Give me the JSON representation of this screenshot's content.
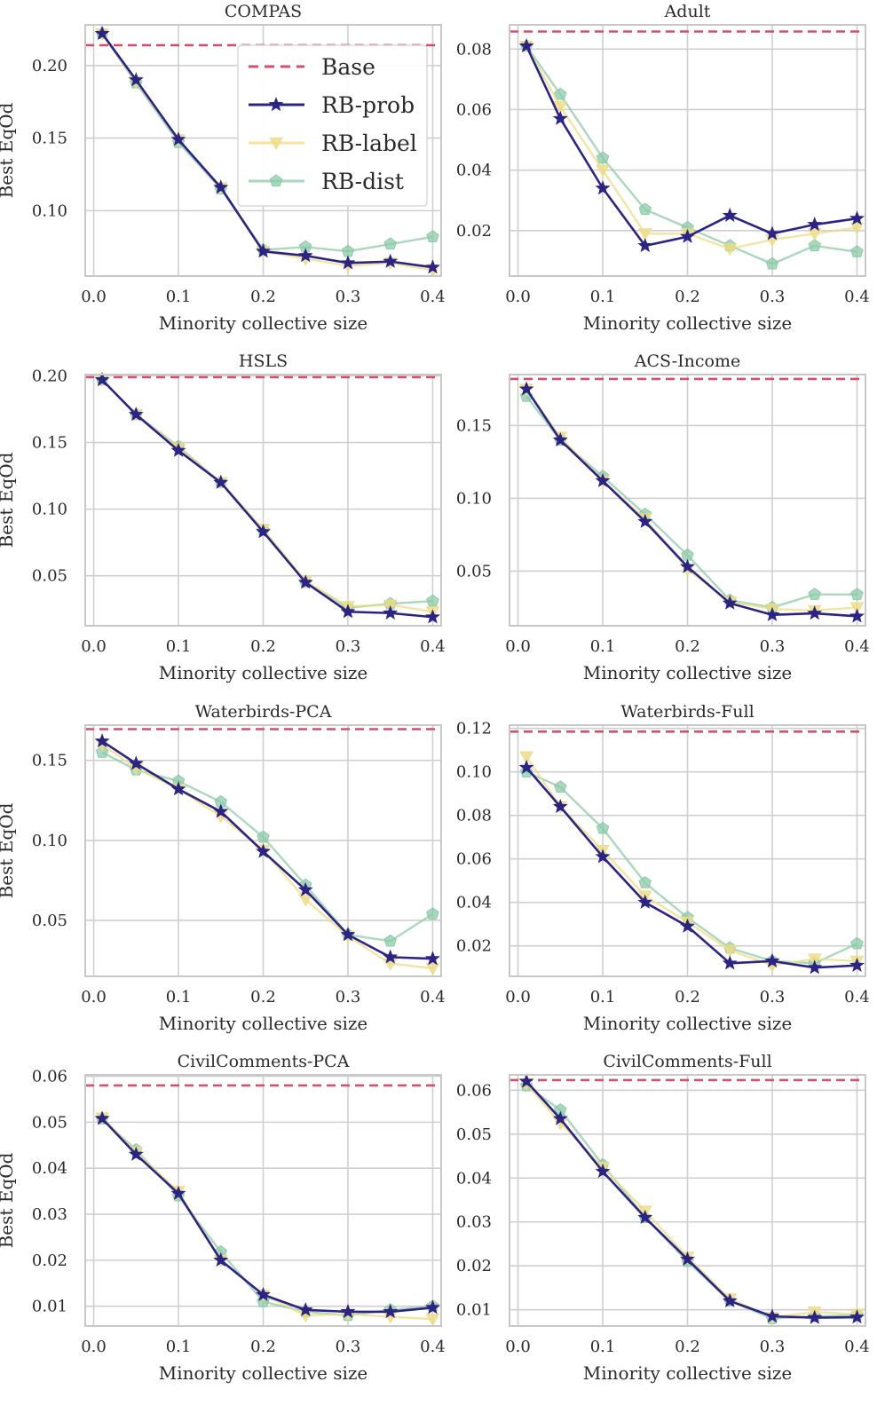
{
  "figure": {
    "colors": {
      "base": "#d2506e",
      "rb_prob": "#2c2484",
      "rb_label": "#eedc84",
      "rb_dist": "#8ccba8",
      "grid": "#cfcfcf",
      "frame": "#c8c8c8"
    }
  },
  "legend": {
    "entries": [
      {
        "label": "Base",
        "series": "base"
      },
      {
        "label": "RB-prob",
        "series": "rb_prob"
      },
      {
        "label": "RB-label",
        "series": "rb_label"
      },
      {
        "label": "RB-dist",
        "series": "rb_dist"
      }
    ]
  },
  "chart_data": [
    {
      "type": "line",
      "title": "COMPAS",
      "xlabel": "Minority collective size",
      "ylabel": "Best EqOd",
      "xlim": [
        -0.01,
        0.41
      ],
      "ylim": [
        0.055,
        0.228
      ],
      "xticks": [
        "0.0",
        "0.1",
        "0.2",
        "0.3",
        "0.4"
      ],
      "yticks": [
        0.1,
        0.15,
        0.2
      ],
      "ytick_labels": [
        "0.10",
        "0.15",
        "0.20"
      ],
      "x": [
        0.01,
        0.05,
        0.1,
        0.15,
        0.2,
        0.25,
        0.3,
        0.35,
        0.4
      ],
      "base": 0.214,
      "series": [
        {
          "name": "RB-prob",
          "key": "rb_prob",
          "values": [
            0.222,
            0.19,
            0.149,
            0.116,
            0.072,
            0.069,
            0.064,
            0.065,
            0.061
          ]
        },
        {
          "name": "RB-label",
          "key": "rb_label",
          "values": [
            0.222,
            0.189,
            0.149,
            0.116,
            0.072,
            0.067,
            0.062,
            0.064,
            0.059
          ]
        },
        {
          "name": "RB-dist",
          "key": "rb_dist",
          "values": [
            0.222,
            0.188,
            0.147,
            0.115,
            0.073,
            0.075,
            0.072,
            0.077,
            0.082
          ]
        }
      ]
    },
    {
      "type": "line",
      "title": "Adult",
      "xlabel": "Minority collective size",
      "ylabel": "",
      "xlim": [
        -0.01,
        0.41
      ],
      "ylim": [
        0.005,
        0.088
      ],
      "xticks": [
        "0.0",
        "0.1",
        "0.2",
        "0.3",
        "0.4"
      ],
      "yticks": [
        0.02,
        0.04,
        0.06,
        0.08
      ],
      "ytick_labels": [
        "0.02",
        "0.04",
        "0.06",
        "0.08"
      ],
      "x": [
        0.01,
        0.05,
        0.1,
        0.15,
        0.2,
        0.25,
        0.3,
        0.35,
        0.4
      ],
      "base": 0.0858,
      "series": [
        {
          "name": "RB-prob",
          "key": "rb_prob",
          "values": [
            0.081,
            0.057,
            0.034,
            0.015,
            0.018,
            0.025,
            0.019,
            0.022,
            0.024
          ]
        },
        {
          "name": "RB-label",
          "key": "rb_label",
          "values": [
            0.081,
            0.061,
            0.04,
            0.019,
            0.019,
            0.014,
            0.017,
            0.019,
            0.021
          ]
        },
        {
          "name": "RB-dist",
          "key": "rb_dist",
          "values": [
            0.081,
            0.065,
            0.044,
            0.027,
            0.021,
            0.015,
            0.009,
            0.015,
            0.013
          ]
        }
      ]
    },
    {
      "type": "line",
      "title": "HSLS",
      "xlabel": "Minority collective size",
      "ylabel": "Best EqOd",
      "xlim": [
        -0.01,
        0.41
      ],
      "ylim": [
        0.0125,
        0.201
      ],
      "xticks": [
        "0.0",
        "0.1",
        "0.2",
        "0.3",
        "0.4"
      ],
      "yticks": [
        0.05,
        0.1,
        0.15,
        0.2
      ],
      "ytick_labels": [
        "0.05",
        "0.10",
        "0.15",
        "0.20"
      ],
      "x": [
        0.01,
        0.05,
        0.1,
        0.15,
        0.2,
        0.25,
        0.3,
        0.35,
        0.4
      ],
      "base": 0.199,
      "series": [
        {
          "name": "RB-prob",
          "key": "rb_prob",
          "values": [
            0.197,
            0.171,
            0.144,
            0.12,
            0.083,
            0.045,
            0.023,
            0.022,
            0.019
          ]
        },
        {
          "name": "RB-label",
          "key": "rb_label",
          "values": [
            0.197,
            0.171,
            0.146,
            0.12,
            0.085,
            0.046,
            0.027,
            0.028,
            0.023
          ]
        },
        {
          "name": "RB-dist",
          "key": "rb_dist",
          "values": [
            0.197,
            0.171,
            0.147,
            0.12,
            0.084,
            0.045,
            0.026,
            0.029,
            0.031
          ]
        }
      ]
    },
    {
      "type": "line",
      "title": "ACS-Income",
      "xlabel": "Minority collective size",
      "ylabel": "",
      "xlim": [
        -0.01,
        0.41
      ],
      "ylim": [
        0.0125,
        0.185
      ],
      "xticks": [
        "0.0",
        "0.1",
        "0.2",
        "0.3",
        "0.4"
      ],
      "yticks": [
        0.05,
        0.1,
        0.15
      ],
      "ytick_labels": [
        "0.05",
        "0.10",
        "0.15"
      ],
      "x": [
        0.01,
        0.05,
        0.1,
        0.15,
        0.2,
        0.25,
        0.3,
        0.35,
        0.4
      ],
      "base": 0.182,
      "series": [
        {
          "name": "RB-prob",
          "key": "rb_prob",
          "values": [
            0.175,
            0.14,
            0.112,
            0.084,
            0.053,
            0.028,
            0.02,
            0.021,
            0.019
          ]
        },
        {
          "name": "RB-label",
          "key": "rb_label",
          "values": [
            0.175,
            0.142,
            0.112,
            0.086,
            0.051,
            0.029,
            0.024,
            0.023,
            0.025
          ]
        },
        {
          "name": "RB-dist",
          "key": "rb_dist",
          "values": [
            0.17,
            0.14,
            0.115,
            0.089,
            0.061,
            0.03,
            0.025,
            0.034,
            0.034
          ]
        }
      ]
    },
    {
      "type": "line",
      "title": "Waterbirds-PCA",
      "xlabel": "Minority collective size",
      "ylabel": "Best EqOd",
      "xlim": [
        -0.01,
        0.41
      ],
      "ylim": [
        0.015,
        0.172
      ],
      "xticks": [
        "0.0",
        "0.1",
        "0.2",
        "0.3",
        "0.4"
      ],
      "yticks": [
        0.05,
        0.1,
        0.15
      ],
      "ytick_labels": [
        "0.05",
        "0.10",
        "0.15"
      ],
      "x": [
        0.01,
        0.05,
        0.1,
        0.15,
        0.2,
        0.25,
        0.3,
        0.35,
        0.4
      ],
      "base": 0.1695,
      "series": [
        {
          "name": "RB-prob",
          "key": "rb_prob",
          "values": [
            0.162,
            0.148,
            0.132,
            0.118,
            0.093,
            0.069,
            0.041,
            0.027,
            0.026
          ]
        },
        {
          "name": "RB-label",
          "key": "rb_label",
          "values": [
            0.16,
            0.145,
            0.132,
            0.115,
            0.094,
            0.063,
            0.04,
            0.023,
            0.02
          ]
        },
        {
          "name": "RB-dist",
          "key": "rb_dist",
          "values": [
            0.155,
            0.144,
            0.137,
            0.124,
            0.102,
            0.072,
            0.041,
            0.037,
            0.054
          ]
        }
      ]
    },
    {
      "type": "line",
      "title": "Waterbirds-Full",
      "xlabel": "Minority collective size",
      "ylabel": "",
      "xlim": [
        -0.01,
        0.41
      ],
      "ylim": [
        0.006,
        0.1215
      ],
      "xticks": [
        "0.0",
        "0.1",
        "0.2",
        "0.3",
        "0.4"
      ],
      "yticks": [
        0.02,
        0.04,
        0.06,
        0.08,
        0.1,
        0.12
      ],
      "ytick_labels": [
        "0.02",
        "0.04",
        "0.06",
        "0.08",
        "0.10",
        "0.12"
      ],
      "x": [
        0.01,
        0.05,
        0.1,
        0.15,
        0.2,
        0.25,
        0.3,
        0.35,
        0.4
      ],
      "base": 0.1185,
      "series": [
        {
          "name": "RB-prob",
          "key": "rb_prob",
          "values": [
            0.102,
            0.084,
            0.061,
            0.04,
            0.029,
            0.012,
            0.013,
            0.01,
            0.011
          ]
        },
        {
          "name": "RB-label",
          "key": "rb_label",
          "values": [
            0.107,
            0.084,
            0.064,
            0.043,
            0.031,
            0.018,
            0.011,
            0.014,
            0.013
          ]
        },
        {
          "name": "RB-dist",
          "key": "rb_dist",
          "values": [
            0.1,
            0.093,
            0.074,
            0.049,
            0.033,
            0.019,
            0.013,
            0.012,
            0.021
          ]
        }
      ]
    },
    {
      "type": "line",
      "title": "CivilComments-PCA",
      "xlabel": "Minority collective size",
      "ylabel": "Best EqOd",
      "xlim": [
        -0.01,
        0.41
      ],
      "ylim": [
        0.0057,
        0.0603
      ],
      "xticks": [
        "0.0",
        "0.1",
        "0.2",
        "0.3",
        "0.4"
      ],
      "yticks": [
        0.01,
        0.02,
        0.03,
        0.04,
        0.05,
        0.06
      ],
      "ytick_labels": [
        "0.01",
        "0.02",
        "0.03",
        "0.04",
        "0.05",
        "0.06"
      ],
      "x": [
        0.01,
        0.05,
        0.1,
        0.15,
        0.2,
        0.25,
        0.3,
        0.35,
        0.4
      ],
      "base": 0.058,
      "series": [
        {
          "name": "RB-prob",
          "key": "rb_prob",
          "values": [
            0.0508,
            0.043,
            0.0345,
            0.02,
            0.0125,
            0.0092,
            0.0088,
            0.0088,
            0.0097
          ]
        },
        {
          "name": "RB-label",
          "key": "rb_label",
          "values": [
            0.051,
            0.0435,
            0.035,
            0.02,
            0.0125,
            0.008,
            0.0083,
            0.0077,
            0.0072
          ]
        },
        {
          "name": "RB-dist",
          "key": "rb_dist",
          "values": [
            0.0507,
            0.044,
            0.034,
            0.0218,
            0.011,
            0.0088,
            0.008,
            0.0092,
            0.01
          ]
        }
      ]
    },
    {
      "type": "line",
      "title": "CivilComments-Full",
      "xlabel": "Minority collective size",
      "ylabel": "",
      "xlim": [
        -0.01,
        0.41
      ],
      "ylim": [
        0.0063,
        0.0635
      ],
      "xticks": [
        "0.0",
        "0.1",
        "0.2",
        "0.3",
        "0.4"
      ],
      "yticks": [
        0.01,
        0.02,
        0.03,
        0.04,
        0.05,
        0.06
      ],
      "ytick_labels": [
        "0.01",
        "0.02",
        "0.03",
        "0.04",
        "0.05",
        "0.06"
      ],
      "x": [
        0.01,
        0.05,
        0.1,
        0.15,
        0.2,
        0.25,
        0.3,
        0.35,
        0.4
      ],
      "base": 0.0623,
      "series": [
        {
          "name": "RB-prob",
          "key": "rb_prob",
          "values": [
            0.062,
            0.0535,
            0.0415,
            0.031,
            0.0215,
            0.012,
            0.0085,
            0.0082,
            0.0083
          ]
        },
        {
          "name": "RB-label",
          "key": "rb_label",
          "values": [
            0.0615,
            0.0525,
            0.0425,
            0.0325,
            0.022,
            0.0125,
            0.0083,
            0.0095,
            0.009
          ]
        },
        {
          "name": "RB-dist",
          "key": "rb_dist",
          "values": [
            0.061,
            0.0555,
            0.043,
            0.031,
            0.021,
            0.012,
            0.008,
            0.0085,
            0.0088
          ]
        }
      ]
    }
  ]
}
